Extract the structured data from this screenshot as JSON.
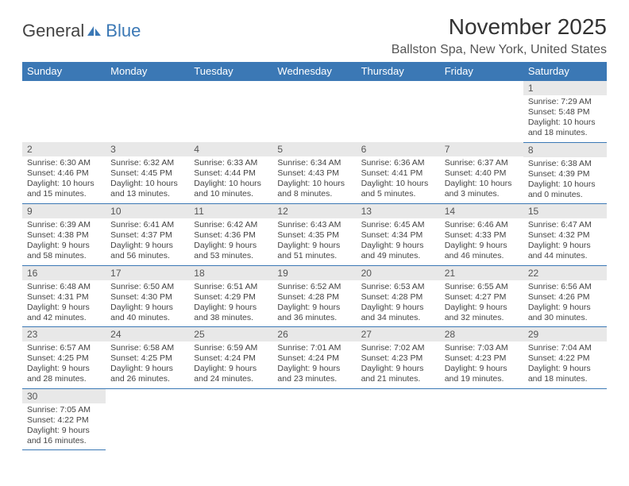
{
  "logo": {
    "text1": "General",
    "text2": "Blue"
  },
  "title": "November 2025",
  "location": "Ballston Spa, New York, United States",
  "colors": {
    "header_bg": "#3b78b5",
    "header_text": "#ffffff",
    "daynum_bg": "#e8e8e8",
    "border": "#3b78b5",
    "logo_blue": "#3b78b5"
  },
  "day_headers": [
    "Sunday",
    "Monday",
    "Tuesday",
    "Wednesday",
    "Thursday",
    "Friday",
    "Saturday"
  ],
  "weeks": [
    [
      null,
      null,
      null,
      null,
      null,
      null,
      {
        "n": "1",
        "sunrise": "7:29 AM",
        "sunset": "5:48 PM",
        "dl": "10 hours and 18 minutes."
      }
    ],
    [
      {
        "n": "2",
        "sunrise": "6:30 AM",
        "sunset": "4:46 PM",
        "dl": "10 hours and 15 minutes."
      },
      {
        "n": "3",
        "sunrise": "6:32 AM",
        "sunset": "4:45 PM",
        "dl": "10 hours and 13 minutes."
      },
      {
        "n": "4",
        "sunrise": "6:33 AM",
        "sunset": "4:44 PM",
        "dl": "10 hours and 10 minutes."
      },
      {
        "n": "5",
        "sunrise": "6:34 AM",
        "sunset": "4:43 PM",
        "dl": "10 hours and 8 minutes."
      },
      {
        "n": "6",
        "sunrise": "6:36 AM",
        "sunset": "4:41 PM",
        "dl": "10 hours and 5 minutes."
      },
      {
        "n": "7",
        "sunrise": "6:37 AM",
        "sunset": "4:40 PM",
        "dl": "10 hours and 3 minutes."
      },
      {
        "n": "8",
        "sunrise": "6:38 AM",
        "sunset": "4:39 PM",
        "dl": "10 hours and 0 minutes."
      }
    ],
    [
      {
        "n": "9",
        "sunrise": "6:39 AM",
        "sunset": "4:38 PM",
        "dl": "9 hours and 58 minutes."
      },
      {
        "n": "10",
        "sunrise": "6:41 AM",
        "sunset": "4:37 PM",
        "dl": "9 hours and 56 minutes."
      },
      {
        "n": "11",
        "sunrise": "6:42 AM",
        "sunset": "4:36 PM",
        "dl": "9 hours and 53 minutes."
      },
      {
        "n": "12",
        "sunrise": "6:43 AM",
        "sunset": "4:35 PM",
        "dl": "9 hours and 51 minutes."
      },
      {
        "n": "13",
        "sunrise": "6:45 AM",
        "sunset": "4:34 PM",
        "dl": "9 hours and 49 minutes."
      },
      {
        "n": "14",
        "sunrise": "6:46 AM",
        "sunset": "4:33 PM",
        "dl": "9 hours and 46 minutes."
      },
      {
        "n": "15",
        "sunrise": "6:47 AM",
        "sunset": "4:32 PM",
        "dl": "9 hours and 44 minutes."
      }
    ],
    [
      {
        "n": "16",
        "sunrise": "6:48 AM",
        "sunset": "4:31 PM",
        "dl": "9 hours and 42 minutes."
      },
      {
        "n": "17",
        "sunrise": "6:50 AM",
        "sunset": "4:30 PM",
        "dl": "9 hours and 40 minutes."
      },
      {
        "n": "18",
        "sunrise": "6:51 AM",
        "sunset": "4:29 PM",
        "dl": "9 hours and 38 minutes."
      },
      {
        "n": "19",
        "sunrise": "6:52 AM",
        "sunset": "4:28 PM",
        "dl": "9 hours and 36 minutes."
      },
      {
        "n": "20",
        "sunrise": "6:53 AM",
        "sunset": "4:28 PM",
        "dl": "9 hours and 34 minutes."
      },
      {
        "n": "21",
        "sunrise": "6:55 AM",
        "sunset": "4:27 PM",
        "dl": "9 hours and 32 minutes."
      },
      {
        "n": "22",
        "sunrise": "6:56 AM",
        "sunset": "4:26 PM",
        "dl": "9 hours and 30 minutes."
      }
    ],
    [
      {
        "n": "23",
        "sunrise": "6:57 AM",
        "sunset": "4:25 PM",
        "dl": "9 hours and 28 minutes."
      },
      {
        "n": "24",
        "sunrise": "6:58 AM",
        "sunset": "4:25 PM",
        "dl": "9 hours and 26 minutes."
      },
      {
        "n": "25",
        "sunrise": "6:59 AM",
        "sunset": "4:24 PM",
        "dl": "9 hours and 24 minutes."
      },
      {
        "n": "26",
        "sunrise": "7:01 AM",
        "sunset": "4:24 PM",
        "dl": "9 hours and 23 minutes."
      },
      {
        "n": "27",
        "sunrise": "7:02 AM",
        "sunset": "4:23 PM",
        "dl": "9 hours and 21 minutes."
      },
      {
        "n": "28",
        "sunrise": "7:03 AM",
        "sunset": "4:23 PM",
        "dl": "9 hours and 19 minutes."
      },
      {
        "n": "29",
        "sunrise": "7:04 AM",
        "sunset": "4:22 PM",
        "dl": "9 hours and 18 minutes."
      }
    ],
    [
      {
        "n": "30",
        "sunrise": "7:05 AM",
        "sunset": "4:22 PM",
        "dl": "9 hours and 16 minutes."
      },
      null,
      null,
      null,
      null,
      null,
      null
    ]
  ],
  "labels": {
    "sunrise": "Sunrise:",
    "sunset": "Sunset:",
    "daylight": "Daylight:"
  }
}
